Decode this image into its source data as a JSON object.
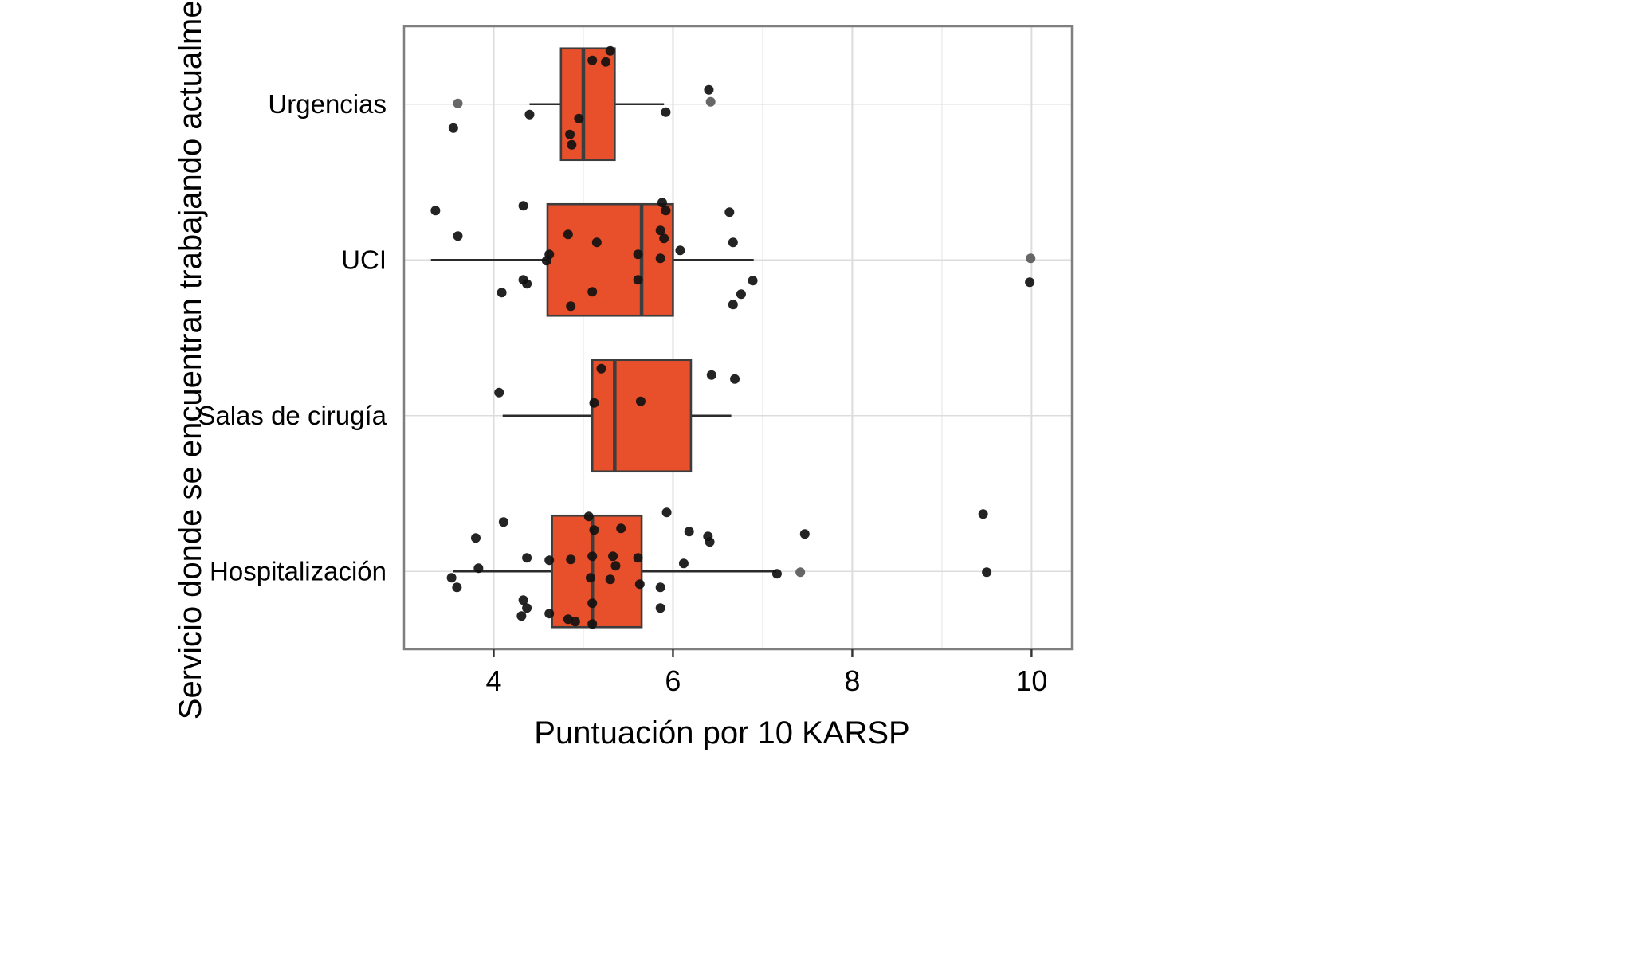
{
  "chart_data": {
    "type": "boxplot",
    "orientation": "horizontal",
    "title": "",
    "xlabel": "Puntuación por 10 KARSP",
    "ylabel": "Servicio donde se encuentran trabajando actualmente",
    "xlim": [
      3.0,
      10.45
    ],
    "xticks": [
      4,
      6,
      8,
      10
    ],
    "xticks_minor": [
      3,
      5,
      7,
      9
    ],
    "grid": true,
    "legend": "none",
    "categories": [
      "Urgencias",
      "UCI",
      "Salas de cirugía",
      "Hospitalización"
    ],
    "colors": {
      "box_fill": "#E8502B",
      "box_stroke": "#3d3d3d",
      "median": "#3d3d3d",
      "whisker": "#2b2b2b",
      "point": "#111111",
      "point_gray": "#5a5a5a",
      "grid_major": "#dcdcdc",
      "grid_minor": "#eeeeee",
      "panel_border": "#7f7f7f",
      "tick": "#333333"
    },
    "boxes": [
      {
        "category": "Urgencias",
        "whisker_low": 4.4,
        "q1": 4.75,
        "median": 5.0,
        "q3": 5.35,
        "whisker_high": 5.9
      },
      {
        "category": "UCI",
        "whisker_low": 3.3,
        "q1": 4.6,
        "median": 5.65,
        "q3": 6.0,
        "whisker_high": 6.9
      },
      {
        "category": "Salas de cirugía",
        "whisker_low": 4.1,
        "q1": 5.1,
        "median": 5.35,
        "q3": 6.2,
        "whisker_high": 6.65
      },
      {
        "category": "Hospitalización",
        "whisker_low": 3.55,
        "q1": 4.65,
        "median": 5.1,
        "q3": 5.65,
        "whisker_high": 7.15
      }
    ],
    "points": [
      {
        "category": "Urgencias",
        "xy": [
          [
            5.3,
            -67
          ],
          [
            5.1,
            -55
          ],
          [
            5.25,
            -53
          ],
          [
            6.4,
            -18
          ],
          [
            6.42,
            -3,
            "g"
          ],
          [
            3.6,
            -1,
            "g"
          ],
          [
            5.92,
            10
          ],
          [
            4.4,
            13
          ],
          [
            4.95,
            18
          ],
          [
            3.55,
            30
          ],
          [
            4.85,
            38
          ],
          [
            4.87,
            51
          ]
        ]
      },
      {
        "category": "UCI",
        "xy": [
          [
            5.88,
            -72
          ],
          [
            4.33,
            -68
          ],
          [
            3.35,
            -62
          ],
          [
            5.92,
            -62
          ],
          [
            6.63,
            -60
          ],
          [
            5.86,
            -37
          ],
          [
            4.83,
            -32
          ],
          [
            3.6,
            -30
          ],
          [
            5.9,
            -27
          ],
          [
            5.15,
            -22
          ],
          [
            6.67,
            -22
          ],
          [
            6.08,
            -12
          ],
          [
            4.62,
            -7
          ],
          [
            5.61,
            -7
          ],
          [
            9.99,
            -2,
            "g"
          ],
          [
            5.86,
            -2
          ],
          [
            4.59,
            1
          ],
          [
            5.61,
            25
          ],
          [
            4.33,
            25
          ],
          [
            6.89,
            26
          ],
          [
            9.98,
            28
          ],
          [
            4.37,
            30
          ],
          [
            5.1,
            40
          ],
          [
            4.09,
            41
          ],
          [
            6.76,
            43
          ],
          [
            6.67,
            56
          ],
          [
            4.86,
            58
          ]
        ]
      },
      {
        "category": "Salas de cirugía",
        "xy": [
          [
            5.2,
            -59
          ],
          [
            6.43,
            -51
          ],
          [
            6.69,
            -46
          ],
          [
            4.06,
            -29
          ],
          [
            5.64,
            -18
          ],
          [
            5.12,
            -16
          ]
        ]
      },
      {
        "category": "Hospitalización",
        "xy": [
          [
            5.93,
            -74
          ],
          [
            9.46,
            -72
          ],
          [
            5.06,
            -69
          ],
          [
            4.11,
            -62
          ],
          [
            5.42,
            -54
          ],
          [
            5.12,
            -52
          ],
          [
            6.18,
            -50
          ],
          [
            7.47,
            -47
          ],
          [
            6.39,
            -44
          ],
          [
            3.8,
            -42
          ],
          [
            6.41,
            -37
          ],
          [
            5.1,
            -19
          ],
          [
            5.33,
            -19
          ],
          [
            4.37,
            -17
          ],
          [
            5.61,
            -17
          ],
          [
            4.86,
            -15
          ],
          [
            4.62,
            -14
          ],
          [
            6.12,
            -10
          ],
          [
            5.36,
            -7
          ],
          [
            3.83,
            -4
          ],
          [
            7.42,
            1,
            "g"
          ],
          [
            9.5,
            1
          ],
          [
            7.16,
            3
          ],
          [
            3.53,
            8
          ],
          [
            5.08,
            8
          ],
          [
            5.3,
            10
          ],
          [
            5.63,
            16
          ],
          [
            3.59,
            20
          ],
          [
            5.86,
            20
          ],
          [
            4.33,
            36
          ],
          [
            5.1,
            40
          ],
          [
            4.37,
            46
          ],
          [
            5.86,
            46
          ],
          [
            4.62,
            53
          ],
          [
            4.31,
            56
          ],
          [
            4.83,
            60
          ],
          [
            4.91,
            63
          ],
          [
            5.1,
            66
          ]
        ]
      }
    ]
  }
}
